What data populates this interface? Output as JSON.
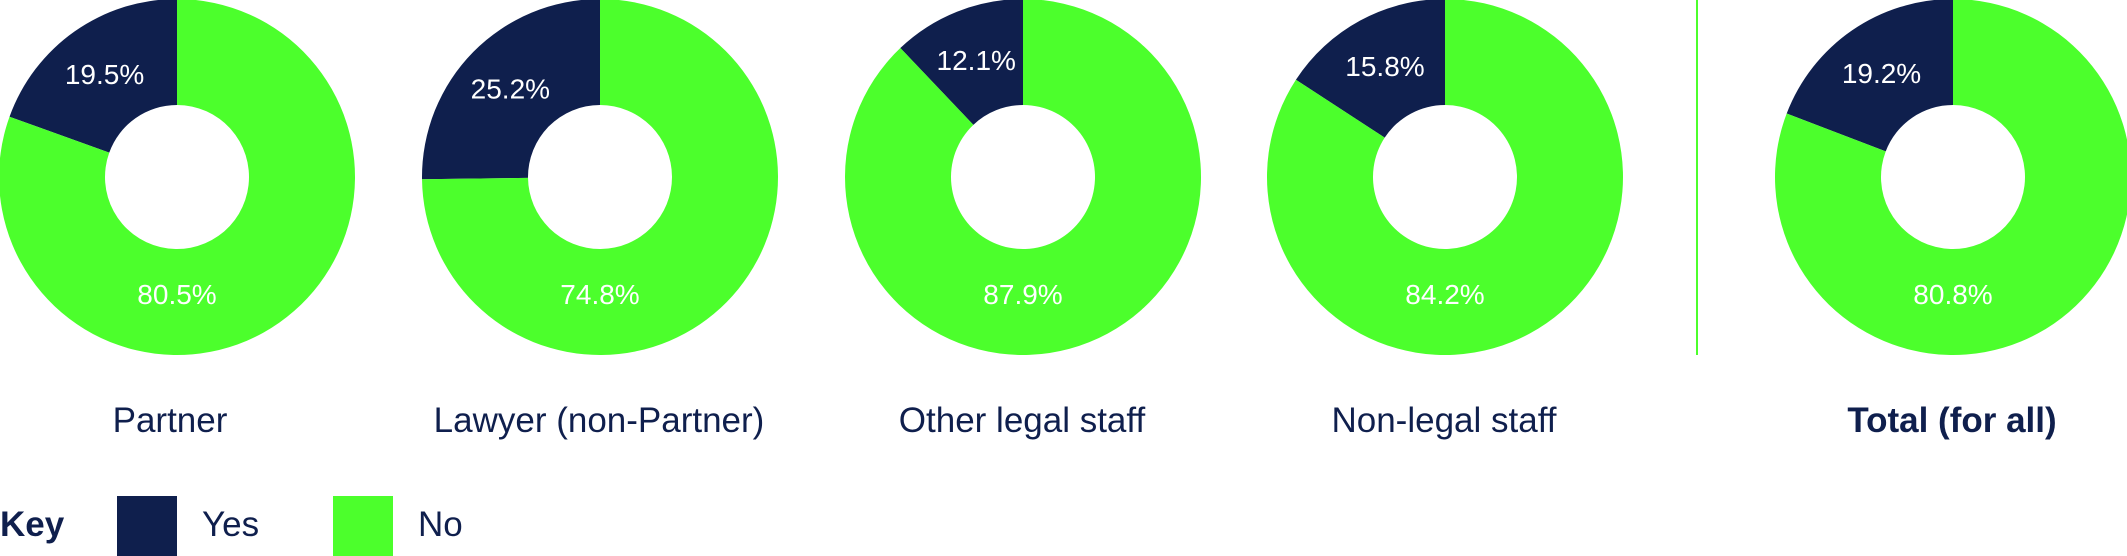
{
  "colors": {
    "yes": "#0f1f4d",
    "no": "#4cff2c",
    "text": "#0f1f4d",
    "pct_text": "#ffffff"
  },
  "chart_data": [
    {
      "type": "pie",
      "title": "Partner",
      "labels": [
        "Yes",
        "No"
      ],
      "values": [
        19.5,
        80.5
      ],
      "value_labels": [
        "19.5%",
        "80.5%"
      ]
    },
    {
      "type": "pie",
      "title": "Lawyer (non-Partner)",
      "labels": [
        "Yes",
        "No"
      ],
      "values": [
        25.2,
        74.8
      ],
      "value_labels": [
        "25.2%",
        "74.8%"
      ]
    },
    {
      "type": "pie",
      "title": "Other legal staff",
      "labels": [
        "Yes",
        "No"
      ],
      "values": [
        12.1,
        87.9
      ],
      "value_labels": [
        "12.1%",
        "87.9%"
      ]
    },
    {
      "type": "pie",
      "title": "Non-legal staff",
      "labels": [
        "Yes",
        "No"
      ],
      "values": [
        15.8,
        84.2
      ],
      "value_labels": [
        "15.8%",
        "84.2%"
      ]
    },
    {
      "type": "pie",
      "title": "Total (for all)",
      "labels": [
        "Yes",
        "No"
      ],
      "values": [
        19.2,
        80.8
      ],
      "value_labels": [
        "19.2%",
        "80.8%"
      ]
    }
  ],
  "legend": {
    "title": "Key",
    "items": [
      {
        "label": "Yes",
        "color": "#0f1f4d"
      },
      {
        "label": "No",
        "color": "#4cff2c"
      }
    ]
  }
}
